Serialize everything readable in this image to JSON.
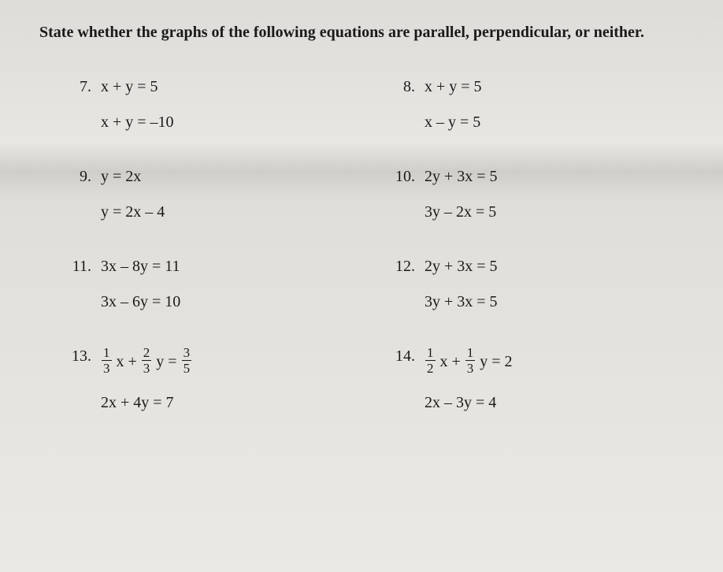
{
  "instruction": "State whether the graphs of the following equations are parallel, perpendicular, or neither.",
  "problems": {
    "p7": {
      "num": "7.",
      "eq1": "x + y = 5",
      "eq2": "x + y = –10"
    },
    "p8": {
      "num": "8.",
      "eq1": "x + y = 5",
      "eq2": "x  – y = 5"
    },
    "p9": {
      "num": "9.",
      "eq1": "y = 2x",
      "eq2": "y = 2x – 4"
    },
    "p10": {
      "num": "10.",
      "eq1": "2y + 3x = 5",
      "eq2": "3y – 2x = 5"
    },
    "p11": {
      "num": "11.",
      "eq1": "3x – 8y = 11",
      "eq2": "3x – 6y = 10"
    },
    "p12": {
      "num": "12.",
      "eq1": "2y + 3x = 5",
      "eq2": "3y + 3x = 5"
    },
    "p13": {
      "num": "13.",
      "f1n": "1",
      "f1d": "3",
      "f2n": "2",
      "f2d": "3",
      "f3n": "3",
      "f3d": "5",
      "mid1": " x + ",
      "mid2": " y = ",
      "eq2": "2x + 4y = 7"
    },
    "p14": {
      "num": "14.",
      "f1n": "1",
      "f1d": "2",
      "f2n": "1",
      "f2d": "3",
      "mid1": " x + ",
      "mid2": " y = 2",
      "eq2": "2x – 3y = 4"
    }
  },
  "colors": {
    "text": "#1a1a1a"
  }
}
